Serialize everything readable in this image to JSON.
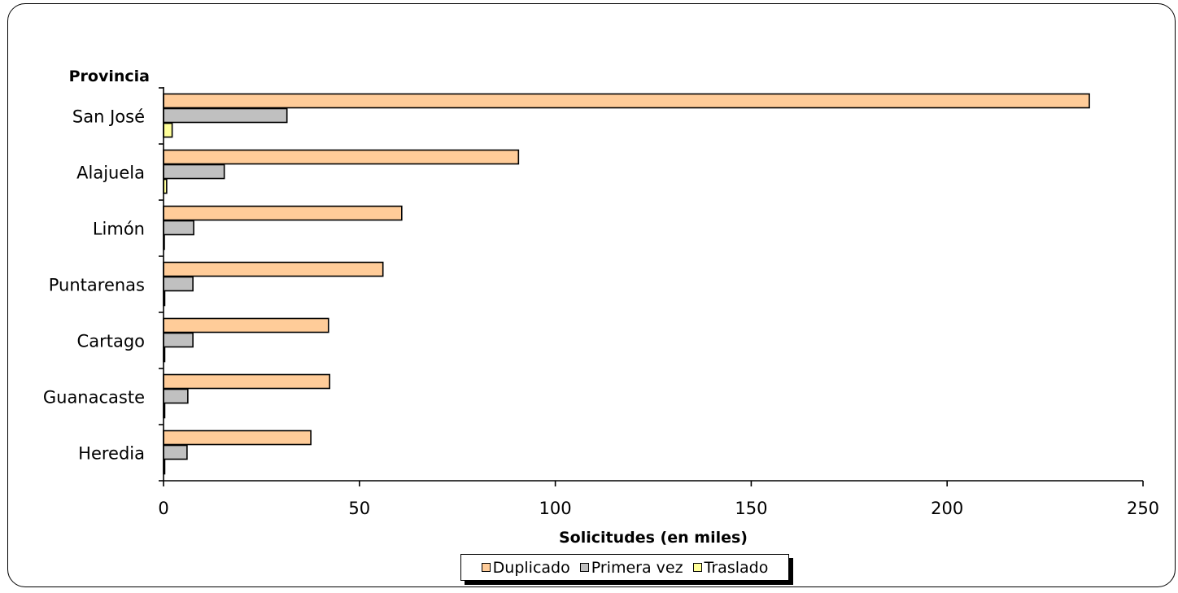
{
  "chart_data": {
    "type": "bar",
    "orientation": "horizontal",
    "y_title": "Provincia",
    "xlabel": "Solicitudes (en miles)",
    "categories": [
      "San José",
      "Alajuela",
      "Limón",
      "Puntarenas",
      "Cartago",
      "Guanacaste",
      "Heredia"
    ],
    "series": [
      {
        "name": "Duplicado",
        "color": "#FFCC99",
        "values": [
          236.3,
          90.6,
          60.8,
          56.0,
          42.1,
          42.4,
          37.6
        ]
      },
      {
        "name": "Primera vez",
        "color": "#C0C0C0",
        "values": [
          31.5,
          15.5,
          7.7,
          7.5,
          7.5,
          6.2,
          6.0
        ]
      },
      {
        "name": "Traslado",
        "color": "#FFFF99",
        "values": [
          2.2,
          0.8,
          0.2,
          0.3,
          0.3,
          0.3,
          0.3
        ]
      }
    ],
    "xlim": [
      0,
      250
    ],
    "xticks": [
      0,
      50,
      100,
      150,
      200,
      250
    ],
    "grid": false,
    "legend_position": "bottom"
  }
}
